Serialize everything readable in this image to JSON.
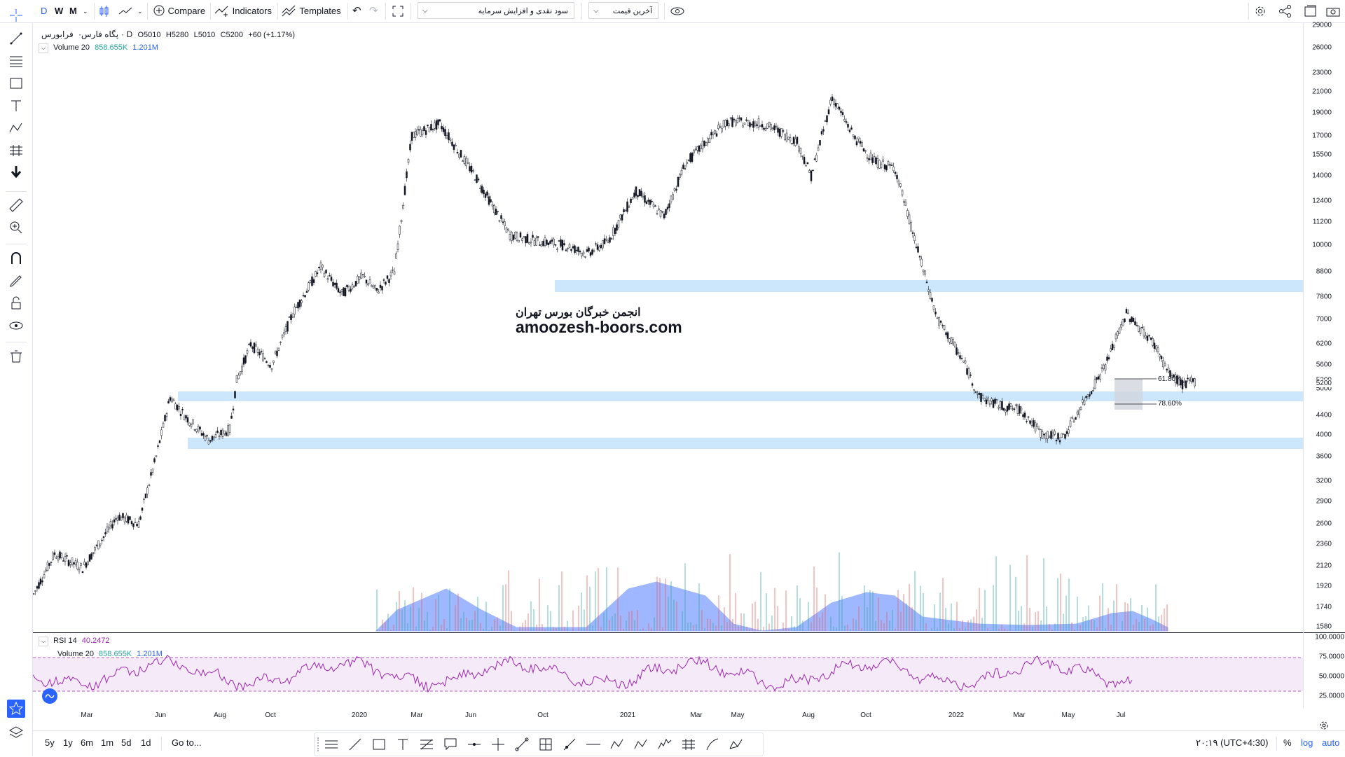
{
  "toolbar": {
    "interval_d": "D",
    "interval_w": "W",
    "interval_m": "M",
    "compare": "Compare",
    "indicators": "Indicators",
    "templates": "Templates",
    "dividend_select": "سود نقدی و افزایش سرمایه",
    "price_select": "آخرین قیمت"
  },
  "symbol": {
    "name": "پگاه فارس",
    "exchange": "فرابورس",
    "interval": "D",
    "open": "O5010",
    "high": "H5280",
    "low": "L5010",
    "close": "C5200",
    "change": "+60 (+1.17%)"
  },
  "volume_legend": {
    "label": "Volume 20",
    "value1": "858.655K",
    "value2": "1.201M"
  },
  "rsi_legend": {
    "label": "RSI 14",
    "value": "40.2472"
  },
  "rsi_volume_legend": {
    "label": "Volume 20",
    "value1": "858.655K",
    "value2": "1.201M"
  },
  "watermark": {
    "line1": "انجمن خبرگان بورس تهران",
    "line2": "amoozesh-boors.com"
  },
  "fib": {
    "upper": "61.80%",
    "lower": "78.60%"
  },
  "price_axis": [
    "29000",
    "26000",
    "23000",
    "21000",
    "19000",
    "17000",
    "15500",
    "14000",
    "12400",
    "11200",
    "10000",
    "8800",
    "7800",
    "7000",
    "6200",
    "5600",
    "5200",
    "5000",
    "4400",
    "4000",
    "3600",
    "3200",
    "2900",
    "2600",
    "2360",
    "2120",
    "1920",
    "1740",
    "1580"
  ],
  "current_price": "5200",
  "rsi_axis": [
    "100.0000",
    "75.0000",
    "50.0000",
    "25.0000"
  ],
  "time_axis": [
    "Mar",
    "Jun",
    "Aug",
    "Oct",
    "2020",
    "Mar",
    "Jun",
    "Oct",
    "2021",
    "Mar",
    "May",
    "Aug",
    "Oct",
    "2022",
    "Mar",
    "May",
    "Jul"
  ],
  "bottom": {
    "ranges": [
      "5y",
      "1y",
      "6m",
      "1m",
      "5d",
      "1d"
    ],
    "goto": "Go to...",
    "clock": "۲۰:۱۹ (UTC+4:30)",
    "percent": "%",
    "log": "log",
    "auto": "auto"
  },
  "colors": {
    "zone": "#bbdefb",
    "rsi_line": "#9c27b0",
    "rsi_band": "#f3e5f5",
    "volume_ma": "#2962ff",
    "vol_up": "#26a69a",
    "vol_down": "#ef5350",
    "accent": "#2962ff"
  }
}
